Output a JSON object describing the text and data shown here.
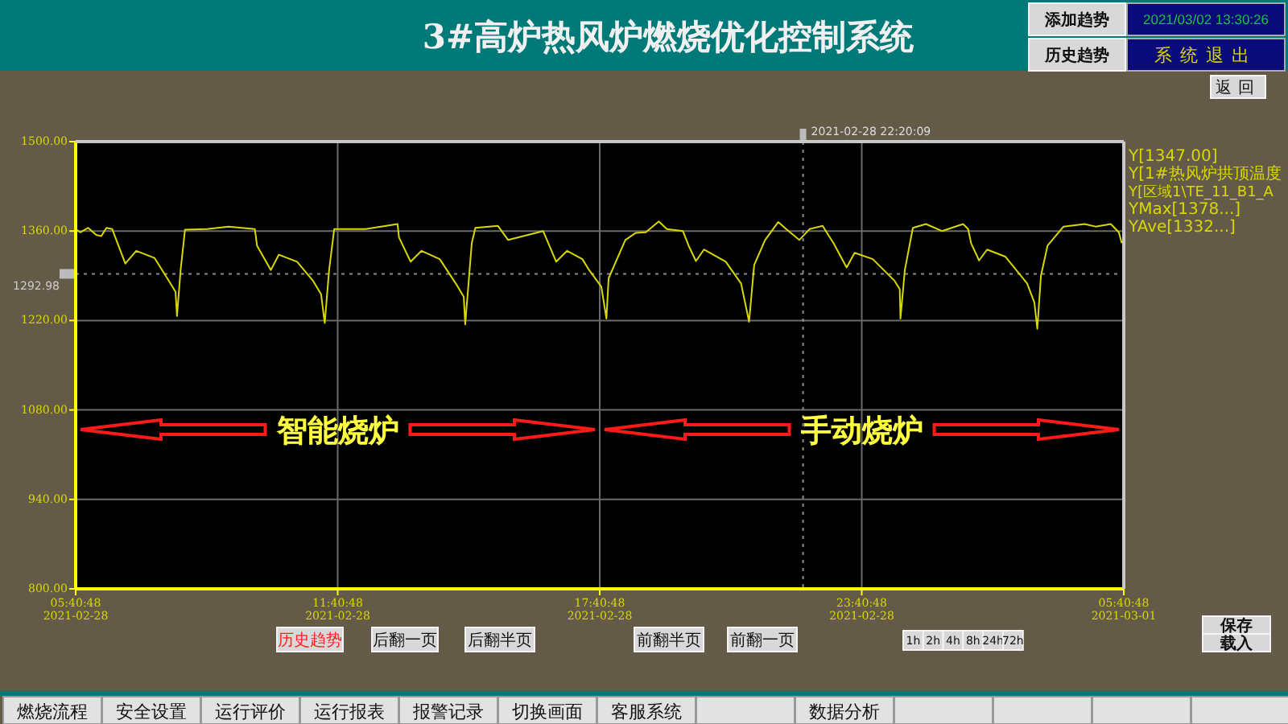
{
  "chart_data": {
    "type": "line",
    "title": "3#高炉热风炉燃烧优化控制系统",
    "x": [
      "2021-02-28T05:41",
      "2021-02-28T05:47",
      "2021-02-28T05:58",
      "2021-02-28T06:09",
      "2021-02-28T06:16",
      "2021-02-28T06:23",
      "2021-02-28T06:31",
      "2021-02-28T06:49",
      "2021-02-28T07:04",
      "2021-02-28T07:29",
      "2021-02-28T07:51",
      "2021-02-28T07:58",
      "2021-02-28T08:00",
      "2021-02-28T08:05",
      "2021-02-28T08:11",
      "2021-02-28T08:41",
      "2021-02-28T09:11",
      "2021-02-28T09:47",
      "2021-02-28T09:50",
      "2021-02-28T10:09",
      "2021-02-28T10:20",
      "2021-02-28T10:45",
      "2021-02-28T11:07",
      "2021-02-28T11:18",
      "2021-02-28T11:23",
      "2021-02-28T11:29",
      "2021-02-28T11:36",
      "2021-02-28T12:19",
      "2021-02-28T13:03",
      "2021-02-28T13:05",
      "2021-02-28T13:21",
      "2021-02-28T13:36",
      "2021-02-28T14:01",
      "2021-02-28T14:23",
      "2021-02-28T14:34",
      "2021-02-28T14:36",
      "2021-02-28T14:45",
      "2021-02-28T14:50",
      "2021-02-28T15:21",
      "2021-02-28T15:35",
      "2021-02-28T16:23",
      "2021-02-28T16:41",
      "2021-02-28T16:56",
      "2021-02-28T17:17",
      "2021-02-28T17:25",
      "2021-02-28T17:43",
      "2021-02-28T17:50",
      "2021-02-28T17:53",
      "2021-02-28T18:16",
      "2021-02-28T18:30",
      "2021-02-28T18:44",
      "2021-02-28T19:02",
      "2021-02-28T19:13",
      "2021-02-28T19:35",
      "2021-02-28T19:43",
      "2021-02-28T19:53",
      "2021-02-28T20:04",
      "2021-02-28T20:34",
      "2021-02-28T20:55",
      "2021-02-28T21:06",
      "2021-02-28T21:13",
      "2021-02-28T21:28",
      "2021-02-28T21:46",
      "2021-02-28T21:57",
      "2021-02-28T22:15",
      "2021-02-28T22:29",
      "2021-02-28T22:47",
      "2021-02-28T23:02",
      "2021-02-28T23:20",
      "2021-02-28T23:31",
      "2021-02-28T23:56",
      "2021-03-01T00:26",
      "2021-03-01T00:33",
      "2021-03-01T00:34",
      "2021-03-01T00:40",
      "2021-03-01T00:51",
      "2021-03-01T01:09",
      "2021-03-01T01:31",
      "2021-03-01T02:00",
      "2021-03-01T02:07",
      "2021-03-01T02:11",
      "2021-03-01T02:22",
      "2021-03-01T02:33",
      "2021-03-01T02:58",
      "2021-03-01T03:28",
      "2021-03-01T03:38",
      "2021-03-01T03:42",
      "2021-03-01T03:47",
      "2021-03-01T03:56",
      "2021-03-01T04:18",
      "2021-03-01T04:47",
      "2021-03-01T05:02",
      "2021-03-01T05:23",
      "2021-03-01T05:34",
      "2021-03-01T05:38"
    ],
    "series": [
      {
        "color": "#d8d800",
        "values": [
          1363,
          1358,
          1365,
          1354,
          1352,
          1365,
          1363,
          1309,
          1329,
          1318,
          1278,
          1265,
          1227,
          1299,
          1362,
          1363,
          1367,
          1363,
          1337,
          1299,
          1323,
          1312,
          1282,
          1261,
          1216,
          1299,
          1363,
          1363,
          1371,
          1350,
          1312,
          1329,
          1316,
          1278,
          1257,
          1214,
          1341,
          1365,
          1368,
          1346,
          1360,
          1312,
          1329,
          1316,
          1301,
          1273,
          1223,
          1286,
          1346,
          1357,
          1358,
          1375,
          1363,
          1360,
          1337,
          1313,
          1331,
          1312,
          1278,
          1218,
          1307,
          1346,
          1374,
          1363,
          1346,
          1363,
          1368,
          1341,
          1303,
          1326,
          1316,
          1282,
          1269,
          1223,
          1299,
          1365,
          1371,
          1360,
          1371,
          1363,
          1341,
          1314,
          1331,
          1320,
          1278,
          1248,
          1207,
          1290,
          1337,
          1367,
          1371,
          1367,
          1371,
          1358,
          1341
        ]
      }
    ],
    "xlim": [
      "2021-02-28T05:40:48",
      "2021-03-01T05:40:48"
    ],
    "xticks": [
      {
        "value": "2021-02-28T05:40:48",
        "label": "05:40:48\n2021-02-28"
      },
      {
        "value": "2021-02-28T11:40:48",
        "label": "11:40:48\n2021-02-28"
      },
      {
        "value": "2021-02-28T17:40:48",
        "label": "17:40:48\n2021-02-28"
      },
      {
        "value": "2021-02-28T23:40:48",
        "label": "23:40:48\n2021-02-28"
      },
      {
        "value": "2021-03-01T05:40:48",
        "label": "05:40:48\n2021-03-01"
      }
    ],
    "ylim": [
      800,
      1500
    ],
    "yticks": [
      {
        "value": 800,
        "label": "800.00"
      },
      {
        "value": 940,
        "label": "940.00"
      },
      {
        "value": 1080,
        "label": "1080.00"
      },
      {
        "value": 1220,
        "label": "1220.00"
      },
      {
        "value": 1360,
        "label": "1360.00"
      },
      {
        "value": 1500,
        "label": "1500.00"
      }
    ],
    "grid": true,
    "ref_lines": [
      {
        "axis": "y",
        "value": 1292.98,
        "label": "1292.98",
        "color": "#8a8a8a",
        "line_style": "dotted"
      },
      {
        "axis": "x",
        "value": "2021-02-28T22:20:09",
        "label": "2021-02-28 22:20:09",
        "color": "#8a8a8a",
        "line_style": "dotted"
      }
    ],
    "annotations": [
      "智能烧炉",
      "手动烧炉",
      "添加趋势",
      "历史趋势",
      "2021/03/02 13:30:26",
      "系统退出",
      "返回",
      "历史趋势",
      "后翻一页",
      "后翻半页",
      "前翻半页",
      "前翻一页",
      "1h",
      "2h",
      "4h",
      "8h",
      "24h",
      "72h",
      "保存",
      "载入",
      "燃烧流程",
      "安全设置",
      "运行评价",
      "运行报表",
      "报警记录",
      "切换画面",
      "客服系统",
      "数据分析",
      "Y[1347.00]",
      "Y[1#热风炉拱顶温度",
      "Y[区域1\\TE_11_B1_A",
      "YMax[1378...]",
      "YAve[1332...]"
    ]
  }
}
